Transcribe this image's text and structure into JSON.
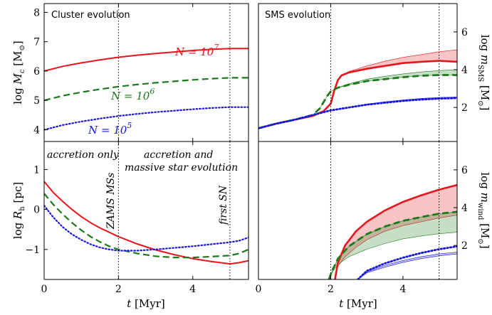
{
  "figure": {
    "x_axis_label": "t [Myr]",
    "x_ticks": [
      "0",
      "2",
      "4"
    ]
  },
  "chart_data": [
    {
      "id": "cluster_mass",
      "type": "line",
      "title": "Cluster evolution",
      "xlabel": "t [Myr]",
      "ylabel": "log M_c [M_⊙]",
      "xlim": [
        0,
        5.5
      ],
      "ylim": [
        3.6,
        8.3
      ],
      "y_ticks": [
        4,
        5,
        6,
        7,
        8
      ],
      "grid": false,
      "series": [
        {
          "name": "N = 10^7",
          "color": "#e8141b",
          "style": "solid",
          "x": [
            0,
            0.5,
            1,
            1.5,
            2,
            2.5,
            3,
            3.5,
            4,
            4.5,
            5,
            5.5
          ],
          "y": [
            6.0,
            6.16,
            6.28,
            6.38,
            6.47,
            6.54,
            6.6,
            6.65,
            6.7,
            6.74,
            6.77,
            6.77
          ]
        },
        {
          "name": "N = 10^6",
          "color": "#1a7a1a",
          "style": "dashed",
          "x": [
            0,
            0.5,
            1,
            1.5,
            2,
            2.5,
            3,
            3.5,
            4,
            4.5,
            5,
            5.5
          ],
          "y": [
            5.0,
            5.16,
            5.28,
            5.38,
            5.47,
            5.54,
            5.6,
            5.65,
            5.7,
            5.74,
            5.77,
            5.77
          ]
        },
        {
          "name": "N = 10^5",
          "color": "#1515e0",
          "style": "dotted",
          "x": [
            0,
            0.5,
            1,
            1.5,
            2,
            2.5,
            3,
            3.5,
            4,
            4.5,
            5,
            5.5
          ],
          "y": [
            4.0,
            4.16,
            4.28,
            4.38,
            4.47,
            4.54,
            4.6,
            4.65,
            4.7,
            4.74,
            4.77,
            4.77
          ]
        }
      ],
      "series_labels": [
        "N = 10",
        "7",
        "N = 10",
        "6",
        "N = 10",
        "5"
      ],
      "vlines": [
        2,
        5
      ]
    },
    {
      "id": "sms_mass",
      "type": "area",
      "title": "SMS evolution",
      "ylabel": "log m_SMS [M_⊙]",
      "y_axis_side": "right",
      "xlim": [
        0,
        5.5
      ],
      "ylim": [
        0.2,
        7.5
      ],
      "y_ticks": [
        2,
        4,
        6
      ],
      "grid": false,
      "series": [
        {
          "name": "N = 10^7",
          "color": "#e8141b",
          "style": "solid",
          "x": [
            0,
            0.5,
            1,
            1.5,
            1.8,
            2.0,
            2.1,
            2.2,
            2.3,
            2.5,
            3,
            3.5,
            4,
            4.5,
            5,
            5.5
          ],
          "y": [
            0.9,
            1.15,
            1.35,
            1.55,
            1.8,
            2.2,
            2.9,
            3.45,
            3.7,
            3.85,
            4.05,
            4.2,
            4.35,
            4.42,
            4.47,
            4.42
          ],
          "band": [
            [
              0.9,
              0.9
            ],
            [
              1.15,
              1.15
            ],
            [
              1.35,
              1.35
            ],
            [
              1.55,
              1.55
            ],
            [
              1.8,
              1.8
            ],
            [
              2.2,
              2.2
            ],
            [
              2.9,
              2.9
            ],
            [
              3.45,
              3.45
            ],
            [
              3.7,
              3.7
            ],
            [
              3.85,
              3.9
            ],
            [
              4.05,
              4.2
            ],
            [
              4.2,
              4.45
            ],
            [
              4.35,
              4.65
            ],
            [
              4.42,
              4.8
            ],
            [
              4.47,
              4.95
            ],
            [
              4.42,
              5.05
            ]
          ]
        },
        {
          "name": "N = 10^6",
          "color": "#1a7a1a",
          "style": "dashed",
          "x": [
            0,
            0.5,
            1,
            1.5,
            1.7,
            1.9,
            2.0,
            2.2,
            2.5,
            3,
            3.5,
            4,
            4.5,
            5,
            5.5
          ],
          "y": [
            0.9,
            1.15,
            1.35,
            1.6,
            1.95,
            2.6,
            2.85,
            3.05,
            3.2,
            3.4,
            3.5,
            3.6,
            3.68,
            3.72,
            3.72
          ],
          "band": [
            [
              0.9,
              0.9
            ],
            [
              1.15,
              1.15
            ],
            [
              1.35,
              1.35
            ],
            [
              1.6,
              1.6
            ],
            [
              1.95,
              1.95
            ],
            [
              2.6,
              2.6
            ],
            [
              2.85,
              2.85
            ],
            [
              3.05,
              3.05
            ],
            [
              3.2,
              3.25
            ],
            [
              3.4,
              3.5
            ],
            [
              3.5,
              3.65
            ],
            [
              3.6,
              3.78
            ],
            [
              3.68,
              3.88
            ],
            [
              3.72,
              3.95
            ],
            [
              3.72,
              4.0
            ]
          ]
        },
        {
          "name": "N = 10^5",
          "color": "#1515e0",
          "style": "dotted",
          "x": [
            0,
            0.5,
            1,
            1.5,
            2,
            2.5,
            3,
            3.5,
            4,
            4.5,
            5,
            5.5
          ],
          "y": [
            0.9,
            1.15,
            1.35,
            1.6,
            1.85,
            2.0,
            2.15,
            2.25,
            2.35,
            2.42,
            2.47,
            2.5
          ],
          "band": [
            [
              0.9,
              0.9
            ],
            [
              1.15,
              1.15
            ],
            [
              1.35,
              1.35
            ],
            [
              1.6,
              1.6
            ],
            [
              1.85,
              1.85
            ],
            [
              2.0,
              2.0
            ],
            [
              2.15,
              2.18
            ],
            [
              2.25,
              2.3
            ],
            [
              2.35,
              2.4
            ],
            [
              2.42,
              2.48
            ],
            [
              2.47,
              2.53
            ],
            [
              2.5,
              2.56
            ]
          ]
        }
      ],
      "vlines": [
        2,
        5
      ]
    },
    {
      "id": "half_mass_radius",
      "type": "line",
      "ylabel": "log R_h [pc]",
      "xlim": [
        0,
        5.5
      ],
      "ylim": [
        -1.75,
        1.7
      ],
      "y_ticks": [
        -1,
        0,
        1
      ],
      "x_ticks": [
        0,
        2,
        4
      ],
      "grid": false,
      "series": [
        {
          "name": "N = 10^7",
          "color": "#e8141b",
          "style": "solid",
          "x": [
            0,
            0.25,
            0.5,
            0.75,
            1,
            1.25,
            1.5,
            2,
            2.5,
            3,
            3.5,
            4,
            4.5,
            5,
            5.25,
            5.5
          ],
          "y": [
            0.7,
            0.42,
            0.2,
            0.0,
            -0.18,
            -0.33,
            -0.46,
            -0.68,
            -0.86,
            -1.01,
            -1.13,
            -1.23,
            -1.3,
            -1.36,
            -1.33,
            -1.28
          ]
        },
        {
          "name": "N = 10^6",
          "color": "#1a7a1a",
          "style": "dashed",
          "x": [
            0,
            0.25,
            0.5,
            0.75,
            1,
            1.25,
            1.5,
            1.75,
            2,
            2.5,
            3,
            3.5,
            4,
            4.5,
            5,
            5.25,
            5.5
          ],
          "y": [
            0.4,
            0.12,
            -0.12,
            -0.33,
            -0.52,
            -0.68,
            -0.81,
            -0.92,
            -1.0,
            -1.1,
            -1.17,
            -1.2,
            -1.2,
            -1.18,
            -1.15,
            -1.1,
            -1.0
          ]
        },
        {
          "name": "N = 10^5",
          "color": "#1515e0",
          "style": "dotted",
          "x": [
            0,
            0.25,
            0.5,
            0.75,
            1,
            1.25,
            1.5,
            1.75,
            2,
            2.5,
            3,
            3.5,
            4,
            4.5,
            5,
            5.25,
            5.5
          ],
          "y": [
            0.1,
            -0.2,
            -0.44,
            -0.62,
            -0.76,
            -0.87,
            -0.95,
            -1.0,
            -1.03,
            -1.03,
            -1.0,
            -0.96,
            -0.92,
            -0.87,
            -0.82,
            -0.78,
            -0.7
          ]
        }
      ],
      "vlines": [
        2,
        5
      ],
      "annotations": [
        "accretion only",
        "accretion and",
        "massive star evolution",
        "ZAMS MSs",
        "first SN"
      ]
    },
    {
      "id": "wind_mass",
      "type": "area",
      "ylabel": "log m_wind [M_⊙]",
      "y_axis_side": "right",
      "xlim": [
        0,
        5.5
      ],
      "ylim": [
        0.2,
        7.5
      ],
      "y_ticks": [
        2,
        4,
        6
      ],
      "x_ticks": [
        0,
        2,
        4
      ],
      "grid": false,
      "series": [
        {
          "name": "N = 10^7",
          "color": "#e8141b",
          "style": "solid",
          "x": [
            2.12,
            2.2,
            2.4,
            2.7,
            3,
            3.5,
            4,
            4.5,
            5,
            5.5
          ],
          "y": [
            0.2,
            1.1,
            2.0,
            2.75,
            3.25,
            3.85,
            4.3,
            4.65,
            4.95,
            5.2
          ],
          "band": [
            [
              0.2,
              0.2
            ],
            [
              1.1,
              0.9
            ],
            [
              2.0,
              1.4
            ],
            [
              2.75,
              1.9
            ],
            [
              3.25,
              2.3
            ],
            [
              3.85,
              2.75
            ],
            [
              4.3,
              3.05
            ],
            [
              4.65,
              3.25
            ],
            [
              4.95,
              3.45
            ],
            [
              5.2,
              3.6
            ]
          ]
        },
        {
          "name": "N = 10^6",
          "color": "#1a7a1a",
          "style": "dashed",
          "x": [
            1.95,
            2.05,
            2.2,
            2.5,
            3,
            3.5,
            4,
            4.5,
            5,
            5.5
          ],
          "y": [
            0.2,
            0.7,
            1.3,
            1.95,
            2.6,
            3.0,
            3.3,
            3.5,
            3.68,
            3.78
          ],
          "band": [
            [
              0.2,
              0.2
            ],
            [
              0.7,
              0.6
            ],
            [
              1.3,
              1.0
            ],
            [
              1.95,
              1.4
            ],
            [
              2.6,
              1.8
            ],
            [
              3.0,
              2.1
            ],
            [
              3.3,
              2.35
            ],
            [
              3.5,
              2.5
            ],
            [
              3.68,
              2.62
            ],
            [
              3.78,
              2.7
            ]
          ]
        },
        {
          "name": "N = 10^5",
          "color": "#1515e0",
          "style": "dotted",
          "x": [
            2.75,
            3,
            3.5,
            4,
            4.5,
            5,
            5.5
          ],
          "y": [
            0.2,
            0.65,
            1.05,
            1.35,
            1.6,
            1.8,
            1.95
          ],
          "band": [
            [
              0.2,
              0.2
            ],
            [
              0.6,
              0.55
            ],
            [
              0.95,
              0.85
            ],
            [
              1.2,
              1.1
            ],
            [
              1.4,
              1.3
            ],
            [
              1.55,
              1.45
            ],
            [
              1.65,
              1.55
            ]
          ]
        }
      ],
      "vlines": [
        2,
        5
      ]
    }
  ]
}
